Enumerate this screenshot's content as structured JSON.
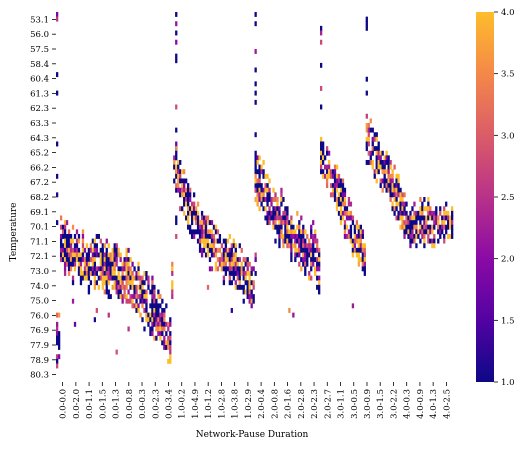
{
  "chart_data": {
    "type": "heatmap",
    "title": "",
    "xlabel": "Network-Pause Duration",
    "ylabel": "Temperature",
    "y_tick_labels": [
      "53.1",
      "56.0",
      "57.5",
      "58.4",
      "60.4",
      "61.3",
      "62.3",
      "63.3",
      "64.3",
      "65.2",
      "66.2",
      "67.2",
      "68.2",
      "69.1",
      "70.1",
      "71.1",
      "72.1",
      "73.0",
      "74.0",
      "75.0",
      "76.0",
      "76.9",
      "77.9",
      "78.9",
      "80.3"
    ],
    "x_tick_labels": [
      "0.0-0.0",
      "0.0-2.0",
      "0.0-1.1",
      "0.0-1.5",
      "0.0-1.3",
      "0.0-0.8",
      "0.0-0.3",
      "0.0-2.3",
      "0.0-3.4",
      "1.0-0.2",
      "1.0-4.9",
      "1.0-1.2",
      "1.0-2.8",
      "1.0-3.8",
      "1.0-2.9",
      "2.0-0.4",
      "2.0-0.8",
      "2.0-1.6",
      "2.0-2.8",
      "2.0-2.3",
      "2.0-2.7",
      "3.0-1.1",
      "3.0-0.5",
      "3.0-0.9",
      "3.0-1.5",
      "3.0-2.2",
      "4.0-0.3",
      "4.0-0.9",
      "4.0-1.3",
      "4.0-2.5"
    ],
    "colorbar": {
      "min": 1.0,
      "max": 4.0,
      "ticks": [
        "1.0",
        "1.5",
        "2.0",
        "2.5",
        "3.0",
        "3.5",
        "4.0"
      ],
      "colormap": [
        "#0d0887",
        "#5302a3",
        "#8b0aa5",
        "#b83289",
        "#db5c68",
        "#f48849",
        "#febd2a"
      ]
    },
    "structure": {
      "n_cols": 200,
      "n_rows": 80,
      "note_blocks": "five network groups, each with a descending diagonal band of populated cells"
    },
    "groups": [
      {
        "start_col": 0,
        "end_col": 57,
        "spikes": [
          [
            0,
            50
          ]
        ],
        "band": [
          [
            2,
            49
          ],
          [
            8,
            52
          ],
          [
            15,
            54
          ],
          [
            25,
            55
          ],
          [
            35,
            57
          ],
          [
            45,
            62
          ],
          [
            52,
            66
          ],
          [
            57,
            70
          ]
        ],
        "jitter": 7
      },
      {
        "start_col": 58,
        "end_col": 99,
        "spikes": [
          [
            2,
            60
          ]
        ],
        "band": [
          [
            1,
            33
          ],
          [
            6,
            39
          ],
          [
            12,
            45
          ],
          [
            20,
            50
          ],
          [
            30,
            54
          ],
          [
            40,
            58
          ]
        ],
        "jitter": 6
      },
      {
        "start_col": 100,
        "end_col": 132,
        "spikes": [
          [
            0,
            58
          ]
        ],
        "band": [
          [
            0,
            35
          ],
          [
            5,
            39
          ],
          [
            12,
            44
          ],
          [
            20,
            48
          ],
          [
            30,
            52
          ],
          [
            32,
            55
          ]
        ],
        "jitter": 7
      },
      {
        "start_col": 133,
        "end_col": 155,
        "spikes": [
          [
            0,
            35
          ]
        ],
        "band": [
          [
            0,
            30
          ],
          [
            5,
            34
          ],
          [
            10,
            40
          ],
          [
            16,
            47
          ],
          [
            22,
            52
          ]
        ],
        "jitter": 6
      },
      {
        "start_col": 156,
        "end_col": 199,
        "spikes": [
          [
            0,
            22
          ]
        ],
        "band": [
          [
            0,
            27
          ],
          [
            6,
            31
          ],
          [
            12,
            36
          ],
          [
            17,
            41
          ],
          [
            20,
            45
          ]
        ],
        "jitter": 6
      }
    ]
  }
}
